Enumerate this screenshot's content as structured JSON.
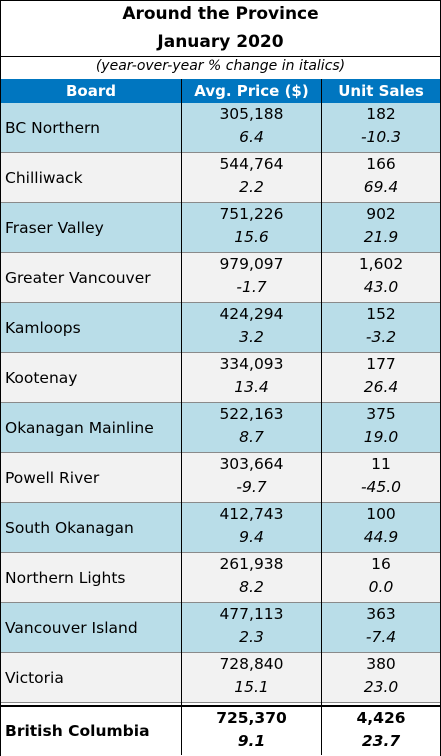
{
  "title_line1": "Around the Province",
  "title_line2": "January 2020",
  "subtitle": "(year-over-year % change in italics)",
  "headers": {
    "board": "Board",
    "price": "Avg. Price ($)",
    "units": "Unit Sales"
  },
  "rows": [
    {
      "board": "BC Northern",
      "price": "305,188",
      "price_chg": "6.4",
      "units": "182",
      "units_chg": "-10.3"
    },
    {
      "board": "Chilliwack",
      "price": "544,764",
      "price_chg": "2.2",
      "units": "166",
      "units_chg": "69.4"
    },
    {
      "board": "Fraser Valley",
      "price": "751,226",
      "price_chg": "15.6",
      "units": "902",
      "units_chg": "21.9"
    },
    {
      "board": "Greater Vancouver",
      "price": "979,097",
      "price_chg": "-1.7",
      "units": "1,602",
      "units_chg": "43.0"
    },
    {
      "board": "Kamloops",
      "price": "424,294",
      "price_chg": "3.2",
      "units": "152",
      "units_chg": "-3.2"
    },
    {
      "board": "Kootenay",
      "price": "334,093",
      "price_chg": "13.4",
      "units": "177",
      "units_chg": "26.4"
    },
    {
      "board": "Okanagan Mainline",
      "price": "522,163",
      "price_chg": "8.7",
      "units": "375",
      "units_chg": "19.0"
    },
    {
      "board": "Powell River",
      "price": "303,664",
      "price_chg": "-9.7",
      "units": "11",
      "units_chg": "-45.0"
    },
    {
      "board": "South Okanagan",
      "price": "412,743",
      "price_chg": "9.4",
      "units": "100",
      "units_chg": "44.9"
    },
    {
      "board": "Northern Lights",
      "price": "261,938",
      "price_chg": "8.2",
      "units": "16",
      "units_chg": "0.0"
    },
    {
      "board": "Vancouver Island",
      "price": "477,113",
      "price_chg": "2.3",
      "units": "363",
      "units_chg": "-7.4"
    },
    {
      "board": "Victoria",
      "price": "728,840",
      "price_chg": "15.1",
      "units": "380",
      "units_chg": "23.0"
    }
  ],
  "total": {
    "board": "British Columbia",
    "price": "725,370",
    "price_chg": "9.1",
    "units": "4,426",
    "units_chg": "23.7"
  },
  "colors": {
    "header_bg": "#0076c0",
    "row_blue": "#b9dde8",
    "row_gray": "#f2f2f2"
  }
}
